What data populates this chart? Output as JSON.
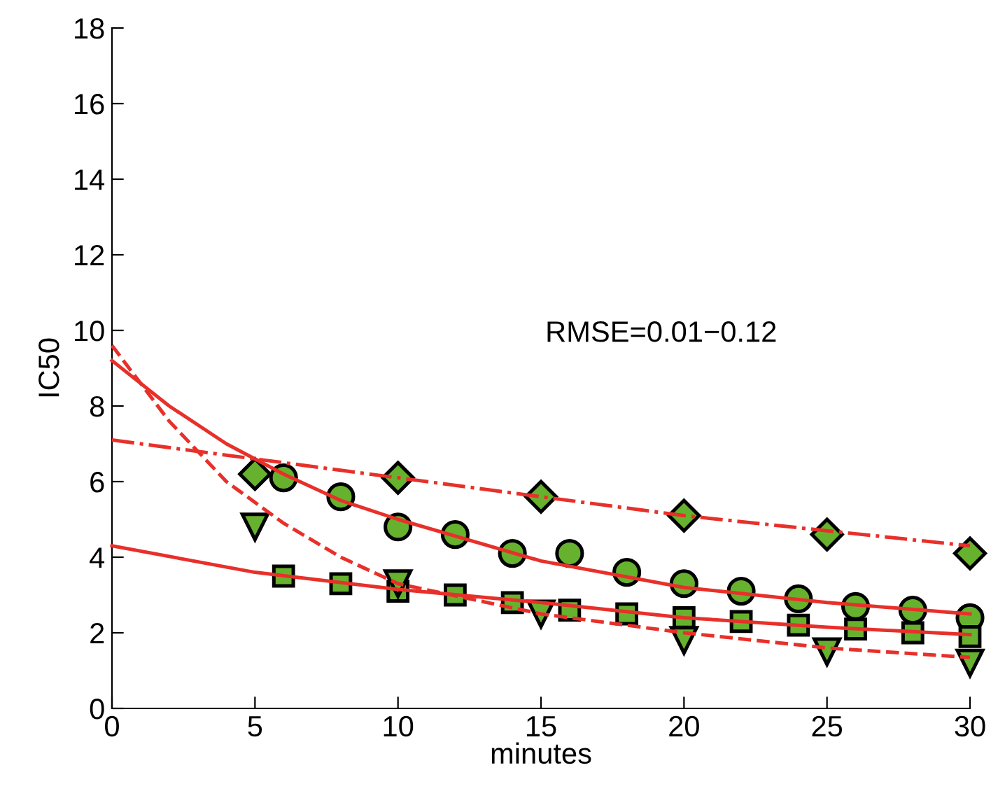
{
  "chart_data": {
    "type": "scatter",
    "xlabel": "minutes",
    "ylabel": "IC50",
    "xlim": [
      0,
      30
    ],
    "ylim": [
      0,
      18
    ],
    "xticks": [
      0,
      5,
      10,
      15,
      20,
      25,
      30
    ],
    "yticks": [
      0,
      2,
      4,
      6,
      8,
      10,
      12,
      14,
      16,
      18
    ],
    "grid": false,
    "legend": false,
    "annotations": [
      "RMSE=0.01−0.12"
    ],
    "series": [
      {
        "type": "line",
        "line_style": "solid",
        "marker": "none",
        "color": "#e8302a",
        "x": [
          0,
          2,
          4,
          6,
          8,
          10,
          15,
          20,
          25,
          30
        ],
        "values": [
          9.2,
          8.0,
          7.0,
          6.2,
          5.5,
          5.0,
          3.9,
          3.2,
          2.8,
          2.5
        ]
      },
      {
        "type": "line",
        "line_style": "solid",
        "marker": "none",
        "color": "#e8302a",
        "x": [
          0,
          5,
          10,
          15,
          20,
          25,
          30
        ],
        "values": [
          4.3,
          3.6,
          3.15,
          2.8,
          2.4,
          2.15,
          1.95
        ]
      },
      {
        "type": "line",
        "line_style": "dashed",
        "marker": "none",
        "color": "#e8302a",
        "x": [
          0,
          2,
          4,
          6,
          8,
          10,
          15,
          20,
          25,
          30
        ],
        "values": [
          9.6,
          7.6,
          6.0,
          4.9,
          4.0,
          3.3,
          2.5,
          2.0,
          1.6,
          1.35
        ]
      },
      {
        "type": "line",
        "line_style": "dashdot",
        "marker": "none",
        "color": "#e8302a",
        "x": [
          0,
          5,
          10,
          15,
          20,
          25,
          30
        ],
        "values": [
          7.1,
          6.6,
          6.1,
          5.6,
          5.1,
          4.7,
          4.3
        ]
      },
      {
        "marker": "diamond",
        "color": "#66b22e",
        "x": [
          5,
          10,
          15,
          20,
          25,
          30
        ],
        "values": [
          6.2,
          6.1,
          5.6,
          5.1,
          4.6,
          4.1
        ]
      },
      {
        "marker": "circle",
        "color": "#66b22e",
        "x": [
          6,
          8,
          10,
          12,
          14,
          16,
          18,
          20,
          22,
          24,
          26,
          28,
          30
        ],
        "values": [
          6.1,
          5.6,
          4.8,
          4.6,
          4.1,
          4.1,
          3.6,
          3.3,
          3.1,
          2.9,
          2.7,
          2.6,
          2.4
        ]
      },
      {
        "marker": "square",
        "color": "#66b22e",
        "x": [
          6,
          8,
          10,
          12,
          14,
          16,
          18,
          20,
          22,
          24,
          26,
          28,
          30
        ],
        "values": [
          3.5,
          3.3,
          3.1,
          3.0,
          2.8,
          2.6,
          2.5,
          2.4,
          2.3,
          2.2,
          2.1,
          2.0,
          1.9
        ]
      },
      {
        "marker": "triangle",
        "color": "#66b22e",
        "x": [
          5,
          10,
          15,
          20,
          25,
          30
        ],
        "values": [
          4.8,
          3.3,
          2.5,
          1.8,
          1.5,
          1.2
        ]
      }
    ]
  }
}
